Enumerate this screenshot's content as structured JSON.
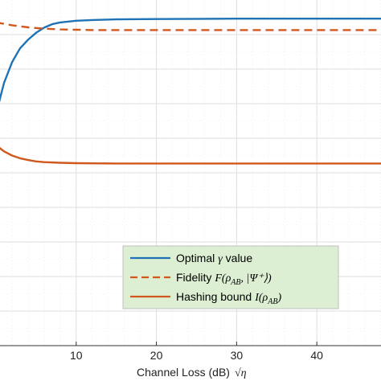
{
  "chart_data": {
    "type": "line",
    "xlabel": "Channel Loss (dB)",
    "xlabel_math": "√η",
    "xlim": [
      0,
      48
    ],
    "x_ticks": [
      10,
      20,
      30,
      40
    ],
    "ylim": [
      0,
      1
    ],
    "grid": true,
    "legend_position": "bottom-right",
    "series": [
      {
        "name": "Optimal γ value",
        "legend_text": "Optimal",
        "legend_math": "γ",
        "legend_suffix": " value",
        "style": "solid",
        "color": "#1f73b5",
        "x": [
          0,
          1,
          2,
          3,
          4,
          5,
          6,
          7,
          8,
          10,
          12,
          15,
          20,
          30,
          40,
          48
        ],
        "y": [
          0.67,
          0.76,
          0.82,
          0.86,
          0.885,
          0.905,
          0.92,
          0.93,
          0.935,
          0.94,
          0.942,
          0.944,
          0.945,
          0.946,
          0.946,
          0.946
        ]
      },
      {
        "name": "Fidelity F(ρAB, |Ψ+⟩)",
        "legend_text": "Fidelity",
        "legend_math": "F(ρ",
        "legend_sub": "AB",
        "legend_suffix": ", |Ψ⁺⟩)",
        "style": "dashed",
        "color": "#d0581d",
        "x": [
          0,
          2,
          4,
          6,
          8,
          10,
          12,
          15,
          20,
          30,
          40,
          48
        ],
        "y": [
          0.935,
          0.927,
          0.921,
          0.917,
          0.915,
          0.914,
          0.913,
          0.913,
          0.913,
          0.913,
          0.913,
          0.913
        ]
      },
      {
        "name": "Hashing bound I(ρAB)",
        "legend_text": "Hashing bound",
        "legend_math": "I(ρ",
        "legend_sub": "AB",
        "legend_suffix": ")",
        "style": "solid",
        "color": "#d0581d",
        "x": [
          0,
          1,
          2,
          3,
          4,
          5,
          6,
          8,
          10,
          15,
          20,
          30,
          40,
          48
        ],
        "y": [
          0.58,
          0.562,
          0.55,
          0.542,
          0.537,
          0.533,
          0.531,
          0.529,
          0.528,
          0.527,
          0.527,
          0.527,
          0.527,
          0.527
        ]
      }
    ]
  }
}
